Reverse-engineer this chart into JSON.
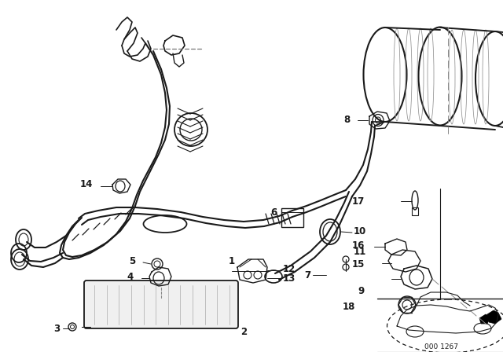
{
  "bg_color": "#ffffff",
  "line_color": "#1a1a1a",
  "diagram_code": "000 1267",
  "fig_w": 6.4,
  "fig_h": 4.48,
  "dpi": 100
}
